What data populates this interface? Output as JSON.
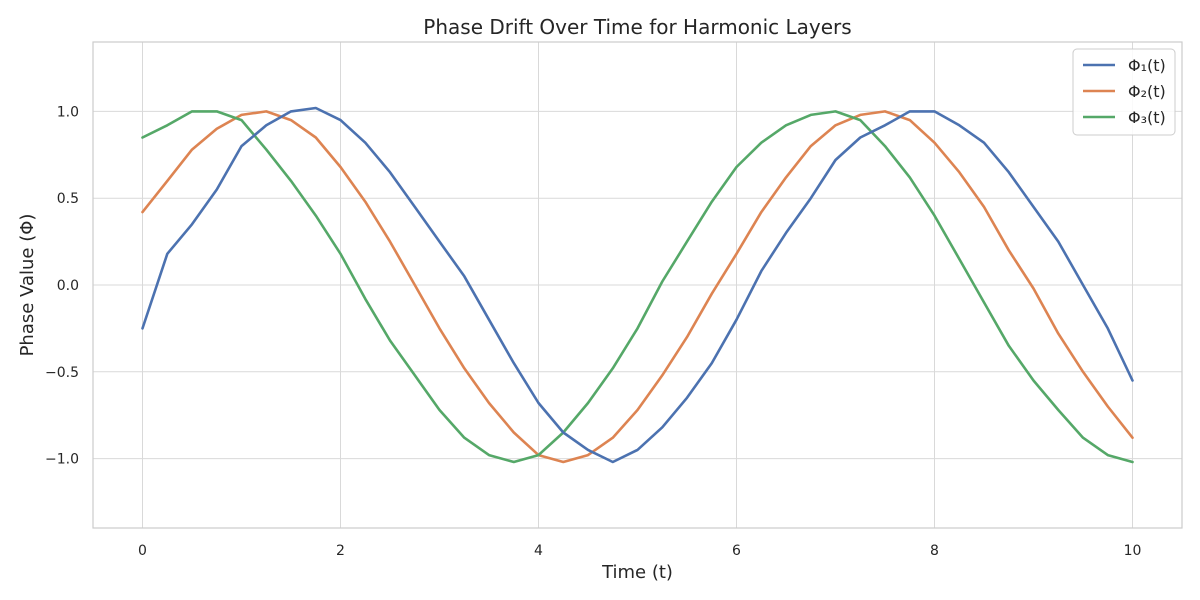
{
  "chart_data": {
    "type": "line",
    "title": "Phase Drift Over Time for Harmonic Layers",
    "xlabel": "Time (t)",
    "ylabel": "Phase Value (Φ)",
    "xlim": [
      -0.5,
      10.5
    ],
    "ylim": [
      -1.4,
      1.4
    ],
    "xticks": [
      0,
      2,
      4,
      6,
      8,
      10
    ],
    "xtick_labels": [
      "0",
      "2",
      "4",
      "6",
      "8",
      "10"
    ],
    "yticks": [
      -1.0,
      -0.5,
      0.0,
      0.5,
      1.0
    ],
    "ytick_labels": [
      "−1.0",
      "−0.5",
      "0.0",
      "0.5",
      "1.0"
    ],
    "grid": true,
    "legend_position": "top-right",
    "series": [
      {
        "name": "Φ₁(t)",
        "color": "#4c72b0",
        "x": [
          0.0,
          0.25,
          0.5,
          0.75,
          1.0,
          1.25,
          1.5,
          1.75,
          2.0,
          2.25,
          2.5,
          2.75,
          3.0,
          3.25,
          3.5,
          3.75,
          4.0,
          4.25,
          4.5,
          4.75,
          5.0,
          5.25,
          5.5,
          5.75,
          6.0,
          6.25,
          6.5,
          6.75,
          7.0,
          7.25,
          7.5,
          7.75,
          8.0,
          8.25,
          8.5,
          8.75,
          9.0,
          9.25,
          9.5,
          9.75,
          10.0
        ],
        "y": [
          -0.25,
          0.18,
          0.35,
          0.55,
          0.8,
          0.92,
          1.0,
          1.02,
          0.95,
          0.82,
          0.65,
          0.45,
          0.25,
          0.05,
          -0.2,
          -0.45,
          -0.68,
          -0.85,
          -0.95,
          -1.02,
          -0.95,
          -0.82,
          -0.65,
          -0.45,
          -0.2,
          0.08,
          0.3,
          0.5,
          0.72,
          0.85,
          0.92,
          1.0,
          1.0,
          0.92,
          0.82,
          0.65,
          0.45,
          0.25,
          0.0,
          -0.25,
          -0.55
        ]
      },
      {
        "name": "Φ₂(t)",
        "color": "#dd8452",
        "x": [
          0.0,
          0.25,
          0.5,
          0.75,
          1.0,
          1.25,
          1.5,
          1.75,
          2.0,
          2.25,
          2.5,
          2.75,
          3.0,
          3.25,
          3.5,
          3.75,
          4.0,
          4.25,
          4.5,
          4.75,
          5.0,
          5.25,
          5.5,
          5.75,
          6.0,
          6.25,
          6.5,
          6.75,
          7.0,
          7.25,
          7.5,
          7.75,
          8.0,
          8.25,
          8.5,
          8.75,
          9.0,
          9.25,
          9.5,
          9.75,
          10.0
        ],
        "y": [
          0.42,
          0.6,
          0.78,
          0.9,
          0.98,
          1.0,
          0.95,
          0.85,
          0.68,
          0.48,
          0.25,
          0.0,
          -0.25,
          -0.48,
          -0.68,
          -0.85,
          -0.98,
          -1.02,
          -0.98,
          -0.88,
          -0.72,
          -0.52,
          -0.3,
          -0.05,
          0.18,
          0.42,
          0.62,
          0.8,
          0.92,
          0.98,
          1.0,
          0.95,
          0.82,
          0.65,
          0.45,
          0.2,
          -0.02,
          -0.28,
          -0.5,
          -0.7,
          -0.88
        ]
      },
      {
        "name": "Φ₃(t)",
        "color": "#55a868",
        "x": [
          0.0,
          0.25,
          0.5,
          0.75,
          1.0,
          1.25,
          1.5,
          1.75,
          2.0,
          2.25,
          2.5,
          2.75,
          3.0,
          3.25,
          3.5,
          3.75,
          4.0,
          4.25,
          4.5,
          4.75,
          5.0,
          5.25,
          5.5,
          5.75,
          6.0,
          6.25,
          6.5,
          6.75,
          7.0,
          7.25,
          7.5,
          7.75,
          8.0,
          8.25,
          8.5,
          8.75,
          9.0,
          9.25,
          9.5,
          9.75,
          10.0
        ],
        "y": [
          0.85,
          0.92,
          1.0,
          1.0,
          0.95,
          0.78,
          0.6,
          0.4,
          0.18,
          -0.08,
          -0.32,
          -0.52,
          -0.72,
          -0.88,
          -0.98,
          -1.02,
          -0.98,
          -0.85,
          -0.68,
          -0.48,
          -0.25,
          0.02,
          0.25,
          0.48,
          0.68,
          0.82,
          0.92,
          0.98,
          1.0,
          0.95,
          0.8,
          0.62,
          0.4,
          0.15,
          -0.1,
          -0.35,
          -0.55,
          -0.72,
          -0.88,
          -0.98,
          -1.02
        ]
      }
    ]
  }
}
